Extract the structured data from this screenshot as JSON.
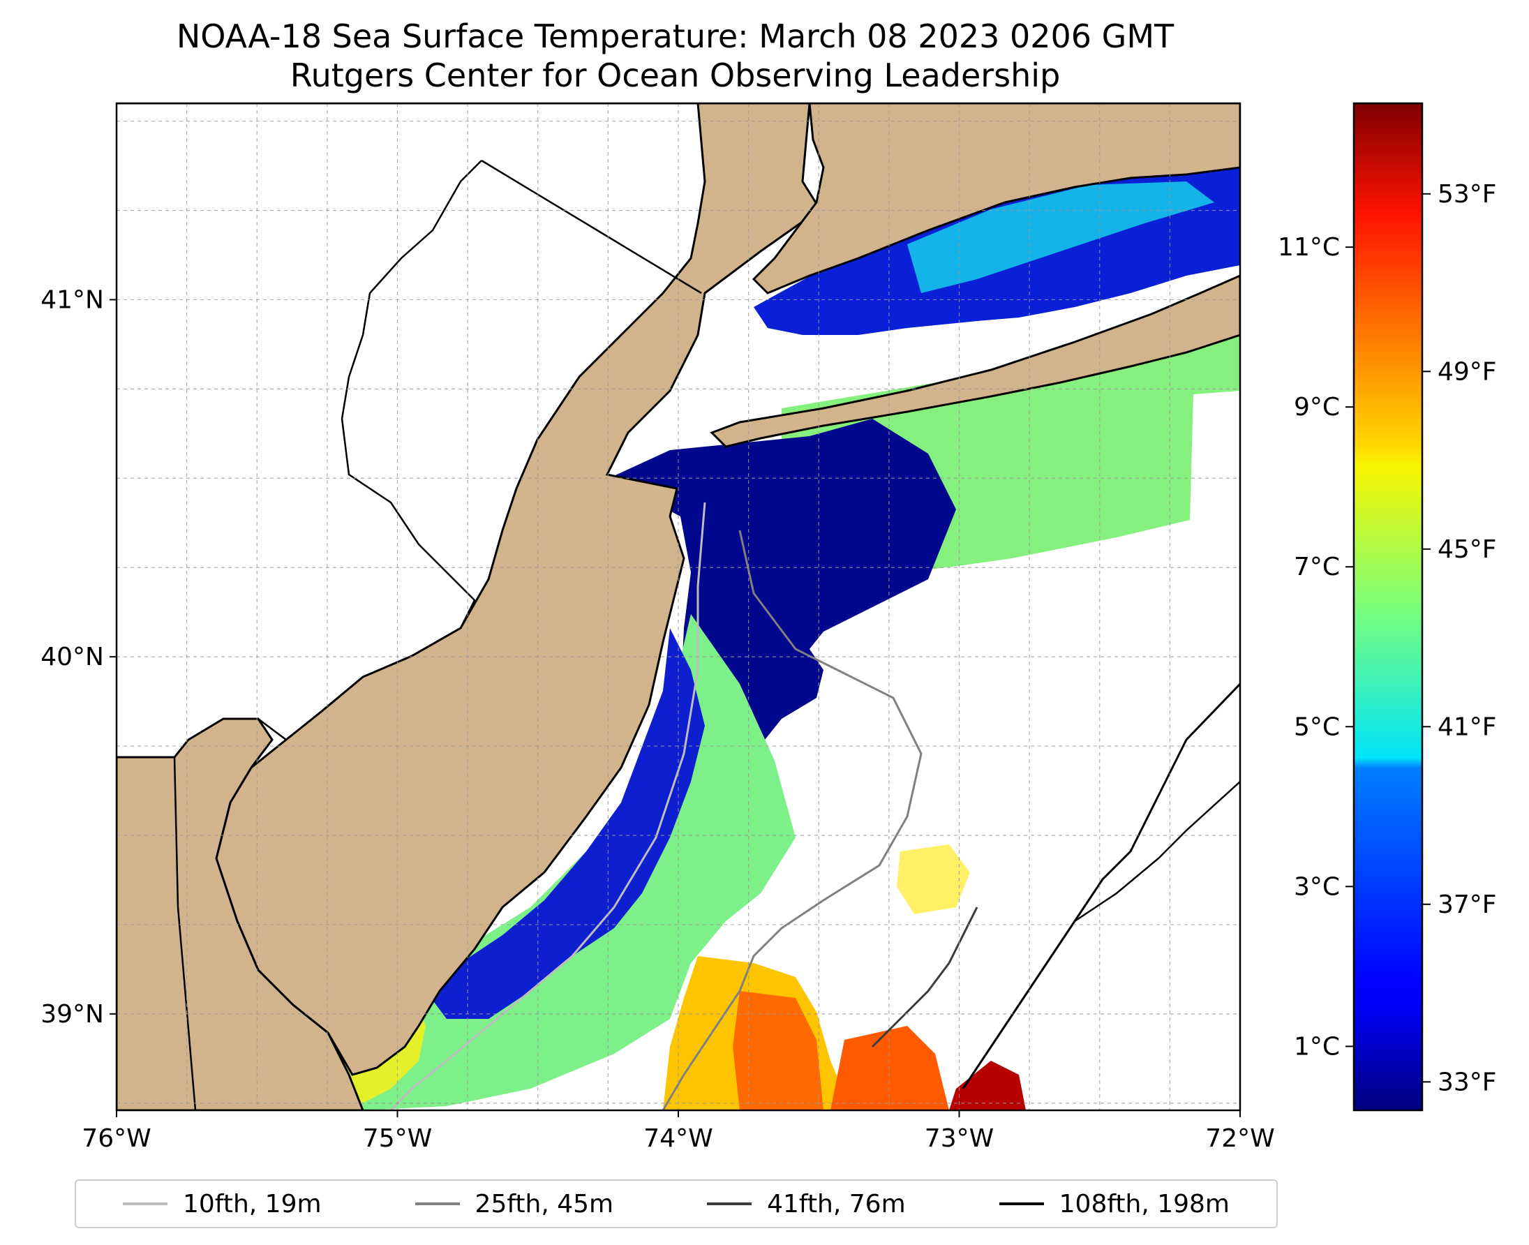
{
  "title": {
    "line1": "NOAA-18 Sea Surface Temperature: March 08 2023 0206 GMT",
    "line2": "Rutgers Center for Ocean Observing Leadership"
  },
  "map": {
    "lon_range": [
      -76,
      -72
    ],
    "lat_range": [
      38.73,
      41.55
    ],
    "land_color": "#d2b48c",
    "no_data_color": "#ffffff",
    "grid": true,
    "x_ticks": [
      {
        "value": -76,
        "label": "76°W"
      },
      {
        "value": -75,
        "label": "75°W"
      },
      {
        "value": -74,
        "label": "74°W"
      },
      {
        "value": -73,
        "label": "73°W"
      },
      {
        "value": -72,
        "label": "72°W"
      }
    ],
    "y_ticks": [
      {
        "value": 41,
        "label": "41°N"
      },
      {
        "value": 40,
        "label": "40°N"
      },
      {
        "value": 39,
        "label": "39°N"
      }
    ]
  },
  "colorbar": {
    "colormap": "jet",
    "range_c": [
      0.2,
      12.8
    ],
    "celsius_ticks": [
      {
        "value": 1,
        "label": "1°C"
      },
      {
        "value": 3,
        "label": "3°C"
      },
      {
        "value": 5,
        "label": "5°C"
      },
      {
        "value": 7,
        "label": "7°C"
      },
      {
        "value": 9,
        "label": "9°C"
      },
      {
        "value": 11,
        "label": "11°C"
      }
    ],
    "fahrenheit_ticks": [
      {
        "value": 33,
        "label": "33°F"
      },
      {
        "value": 37,
        "label": "37°F"
      },
      {
        "value": 41,
        "label": "41°F"
      },
      {
        "value": 45,
        "label": "45°F"
      },
      {
        "value": 49,
        "label": "49°F"
      },
      {
        "value": 53,
        "label": "53°F"
      }
    ]
  },
  "legend": {
    "items": [
      {
        "label": "10fth, 19m",
        "color": "#bdbdbd"
      },
      {
        "label": "25fth, 45m",
        "color": "#808080"
      },
      {
        "label": "41fth, 76m",
        "color": "#3c3c3c"
      },
      {
        "label": "108fth, 198m",
        "color": "#000000"
      }
    ]
  }
}
